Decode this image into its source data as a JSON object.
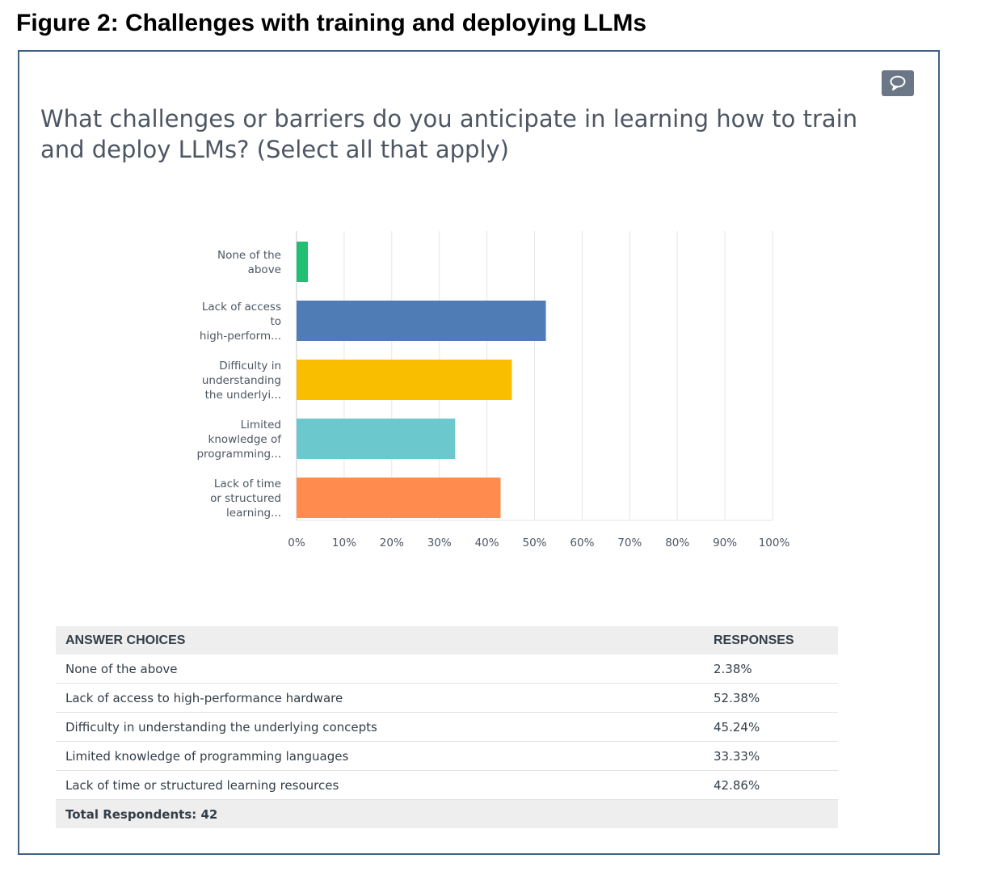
{
  "figure_title": "Figure 2: Challenges with training and deploying LLMs",
  "question": "What challenges or barriers do you anticipate in learning how to train and deploy LLMs? (Select all that apply)",
  "comment_icon": "speech-bubble-icon",
  "chart_data": {
    "type": "bar",
    "orientation": "horizontal",
    "categories": [
      [
        "None of the",
        "above"
      ],
      [
        "Lack of access",
        "to",
        "high-perform..."
      ],
      [
        "Difficulty in",
        "understanding",
        "the underlyi..."
      ],
      [
        "Limited",
        "knowledge of",
        "programming..."
      ],
      [
        "Lack of time",
        "or structured",
        "learning..."
      ]
    ],
    "values": [
      2.38,
      52.38,
      45.24,
      33.33,
      42.86
    ],
    "colors": [
      "#21bf73",
      "#507cb6",
      "#f9be00",
      "#6bc8cd",
      "#ff8b4f"
    ],
    "xlim": [
      0,
      100
    ],
    "x_ticks": [
      "0%",
      "10%",
      "20%",
      "30%",
      "40%",
      "50%",
      "60%",
      "70%",
      "80%",
      "90%",
      "100%"
    ],
    "grid": true
  },
  "table": {
    "headers": [
      "ANSWER CHOICES",
      "RESPONSES"
    ],
    "rows": [
      {
        "choice": "None of the above",
        "response": "2.38%"
      },
      {
        "choice": "Lack of access to high-performance hardware",
        "response": "52.38%"
      },
      {
        "choice": "Difficulty in understanding the underlying concepts",
        "response": "45.24%"
      },
      {
        "choice": "Limited knowledge of programming languages",
        "response": "33.33%"
      },
      {
        "choice": "Lack of time or structured learning resources",
        "response": "42.86%"
      }
    ],
    "total": "Total Respondents: 42"
  }
}
